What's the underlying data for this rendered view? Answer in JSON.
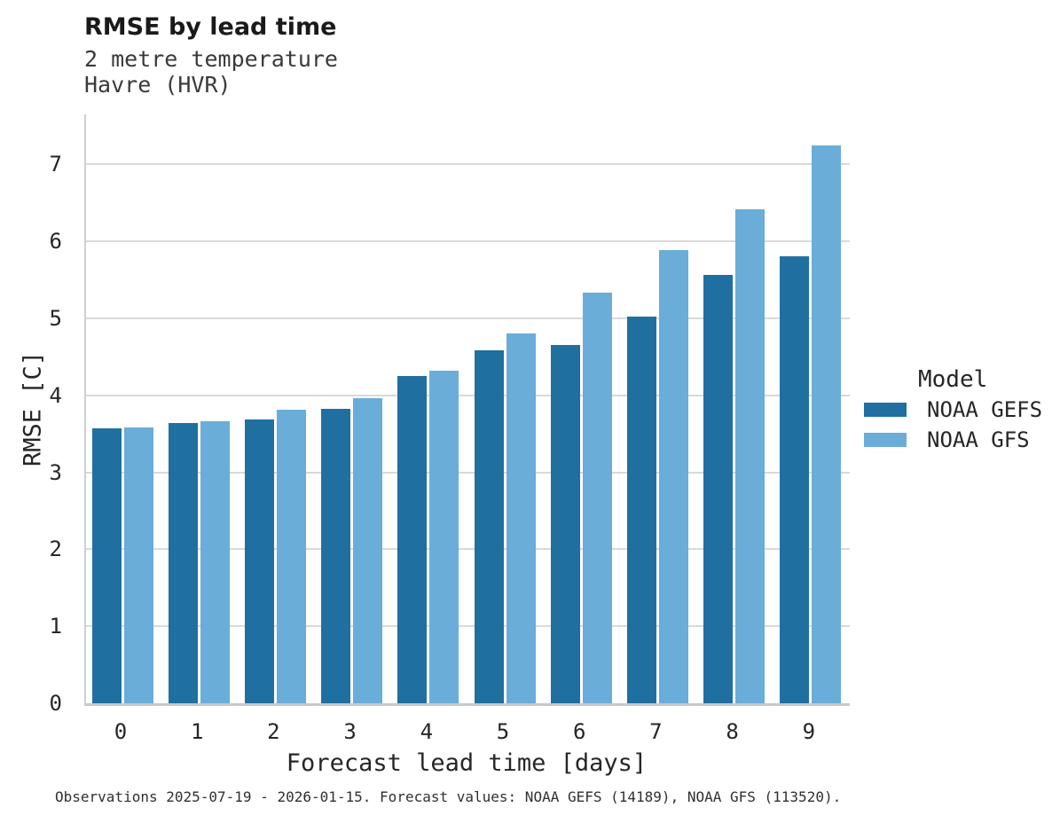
{
  "header": {
    "title": "RMSE by lead time",
    "subtitle1": "2 metre temperature",
    "subtitle2": "Havre (HVR)"
  },
  "chart_data": {
    "type": "bar",
    "title": "RMSE by lead time",
    "subtitle": "2 metre temperature — Havre (HVR)",
    "categories": [
      "0",
      "1",
      "2",
      "3",
      "4",
      "5",
      "6",
      "7",
      "8",
      "9"
    ],
    "series": [
      {
        "name": "NOAA GEFS",
        "color": "#1f70a0",
        "values": [
          3.57,
          3.64,
          3.69,
          3.82,
          4.25,
          4.59,
          4.66,
          5.02,
          5.56,
          5.81
        ]
      },
      {
        "name": "NOAA GFS",
        "color": "#69add8",
        "values": [
          3.58,
          3.66,
          3.81,
          3.96,
          4.32,
          4.8,
          5.33,
          5.89,
          6.42,
          7.25
        ]
      }
    ],
    "xlabel": "Forecast lead time [days]",
    "ylabel": "RMSE [C]",
    "ylim": [
      0,
      7.65
    ],
    "yticks": [
      0,
      1,
      2,
      3,
      4,
      5,
      6,
      7
    ],
    "grid": "horizontal",
    "gridline_color": "#d9d9d9",
    "legend_title": "Model",
    "legend_position": "right"
  },
  "caption": "Observations 2025-07-19 - 2026-01-15. Forecast values: NOAA GEFS (14189), NOAA GFS (113520)."
}
